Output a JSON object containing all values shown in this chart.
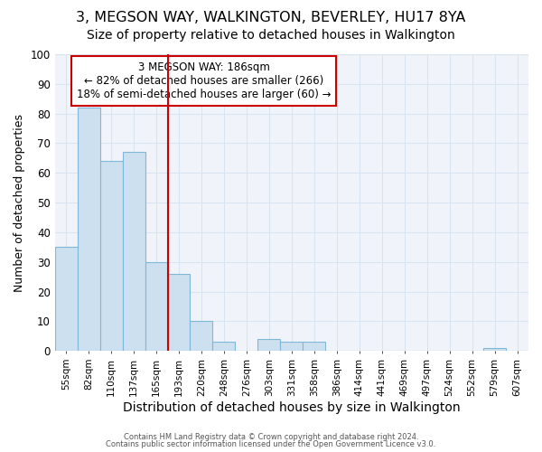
{
  "title1": "3, MEGSON WAY, WALKINGTON, BEVERLEY, HU17 8YA",
  "title2": "Size of property relative to detached houses in Walkington",
  "xlabel": "Distribution of detached houses by size in Walkington",
  "ylabel": "Number of detached properties",
  "categories": [
    "55sqm",
    "82sqm",
    "110sqm",
    "137sqm",
    "165sqm",
    "193sqm",
    "220sqm",
    "248sqm",
    "276sqm",
    "303sqm",
    "331sqm",
    "358sqm",
    "386sqm",
    "414sqm",
    "441sqm",
    "469sqm",
    "497sqm",
    "524sqm",
    "552sqm",
    "579sqm",
    "607sqm"
  ],
  "values": [
    35,
    82,
    64,
    67,
    30,
    26,
    10,
    3,
    0,
    4,
    3,
    3,
    0,
    0,
    0,
    0,
    0,
    0,
    0,
    1,
    0
  ],
  "bar_color": "#cce0f0",
  "bar_edge_color": "#7fb8d8",
  "vline_x": 5.0,
  "annotation_text": "3 MEGSON WAY: 186sqm\n← 82% of detached houses are smaller (266)\n18% of semi-detached houses are larger (60) →",
  "annotation_box_facecolor": "#ffffff",
  "annotation_box_edgecolor": "#cc0000",
  "vline_color": "#cc0000",
  "ylim": [
    0,
    100
  ],
  "yticks": [
    0,
    10,
    20,
    30,
    40,
    50,
    60,
    70,
    80,
    90,
    100
  ],
  "footer1": "Contains HM Land Registry data © Crown copyright and database right 2024.",
  "footer2": "Contains public sector information licensed under the Open Government Licence v3.0.",
  "bg_color": "#ffffff",
  "plot_bg_color": "#f0f4fa",
  "grid_color": "#d8e4f0",
  "title1_fontsize": 11.5,
  "title2_fontsize": 10,
  "annot_fontsize": 8.5,
  "ylabel_fontsize": 9,
  "xlabel_fontsize": 10
}
